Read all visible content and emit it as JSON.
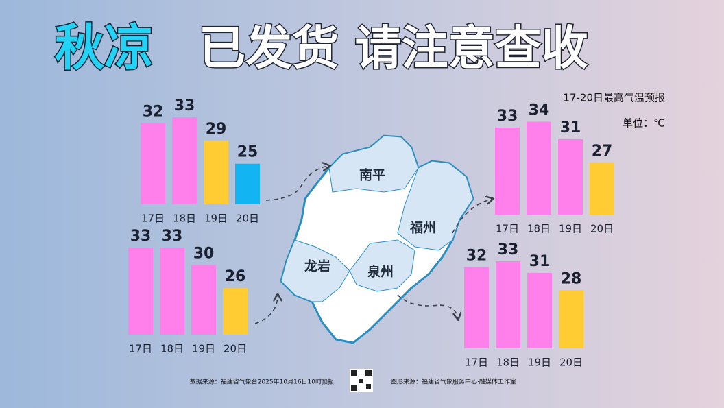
{
  "title": [
    "秋凉",
    "已发货 请注意查收"
  ],
  "subtitle": "17-20日最高气温预报",
  "unit": "单位：℃",
  "source": "数据来源：福建省气象台2025年10月16日10时预报",
  "credit": "图形来源：福建省气象服务中心·融媒体工作室",
  "chart_data": [
    {
      "type": "bar",
      "title": "南平",
      "categories": [
        "17日",
        "18日",
        "19日",
        "20日"
      ],
      "values": [
        32,
        33,
        29,
        25
      ],
      "colors": [
        "#ff80ea",
        "#ff80ea",
        "#ffcc33",
        "#12b5f2"
      ],
      "ylim": [
        18,
        35
      ]
    },
    {
      "type": "bar",
      "title": "龙岩",
      "categories": [
        "17日",
        "18日",
        "19日",
        "20日"
      ],
      "values": [
        33,
        33,
        30,
        26
      ],
      "colors": [
        "#ff80ea",
        "#ff80ea",
        "#ff80ea",
        "#ffcc33"
      ],
      "ylim": [
        18,
        35
      ]
    },
    {
      "type": "bar",
      "title": "福州",
      "categories": [
        "17日",
        "18日",
        "19日",
        "20日"
      ],
      "values": [
        33,
        34,
        31,
        27
      ],
      "colors": [
        "#ff80ea",
        "#ff80ea",
        "#ff80ea",
        "#ffcc33"
      ],
      "ylim": [
        18,
        35
      ]
    },
    {
      "type": "bar",
      "title": "泉州",
      "categories": [
        "17日",
        "18日",
        "19日",
        "20日"
      ],
      "values": [
        32,
        33,
        31,
        28
      ],
      "colors": [
        "#ff80ea",
        "#ff80ea",
        "#ff80ea",
        "#ffcc33"
      ],
      "ylim": [
        18,
        35
      ]
    }
  ]
}
